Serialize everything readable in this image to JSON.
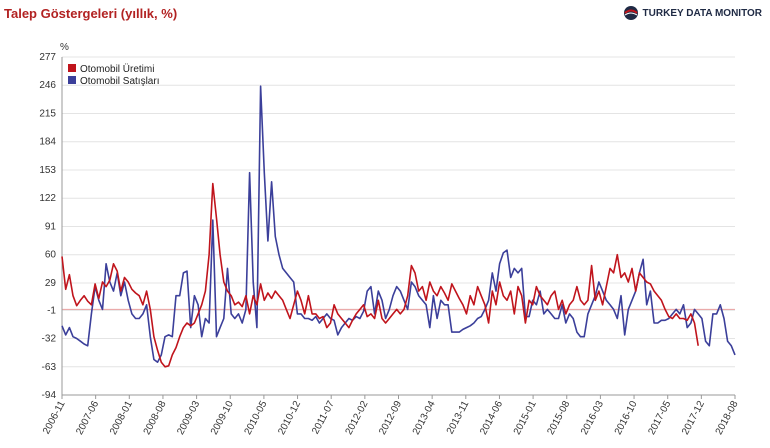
{
  "header": {
    "title": "Talep Göstergeleri (yıllık, %)",
    "brand": "TURKEY DATA MONITOR"
  },
  "colors": {
    "production": "#c0141c",
    "sales": "#3b3f9a",
    "zero_line": "#e8a0a0",
    "grid": "#e4e4e4"
  },
  "chart_data": {
    "type": "line",
    "ylabel": "%",
    "ylim": [
      -94,
      277
    ],
    "yticks": [
      277,
      246,
      215,
      184,
      153,
      122,
      91,
      60,
      29,
      -1,
      -32,
      -63,
      -94
    ],
    "xtick_labels": [
      "2006-11",
      "2007-06",
      "2008-01",
      "2008-08",
      "2009-03",
      "2009-10",
      "2010-05",
      "2010-12",
      "2011-07",
      "2012-02",
      "2012-09",
      "2013-04",
      "2013-11",
      "2014-06",
      "2015-01",
      "2015-08",
      "2016-03",
      "2016-10",
      "2017-05",
      "2017-12",
      "2018-08"
    ],
    "legend_position": "top-left",
    "series": [
      {
        "name": "Otomobil Üretimi",
        "key": "production",
        "values": [
          58,
          22,
          38,
          15,
          4,
          10,
          15,
          9,
          5,
          28,
          12,
          30,
          25,
          32,
          50,
          42,
          20,
          35,
          30,
          22,
          18,
          15,
          5,
          20,
          0,
          -30,
          -45,
          -58,
          -63,
          -62,
          -50,
          -42,
          -30,
          -20,
          -15,
          -18,
          -15,
          -5,
          5,
          20,
          60,
          138,
          100,
          60,
          30,
          20,
          15,
          5,
          8,
          3,
          15,
          -5,
          15,
          5,
          28,
          10,
          18,
          12,
          20,
          15,
          10,
          0,
          -10,
          5,
          20,
          10,
          -5,
          15,
          -5,
          -5,
          -10,
          -8,
          -20,
          -15,
          5,
          -5,
          -10,
          -15,
          -20,
          -12,
          -5,
          0,
          5,
          -8,
          -5,
          -10,
          10,
          -10,
          -15,
          -10,
          -5,
          0,
          -5,
          0,
          15,
          48,
          40,
          20,
          25,
          10,
          30,
          20,
          15,
          25,
          18,
          10,
          28,
          20,
          12,
          5,
          -5,
          15,
          5,
          25,
          15,
          5,
          -15,
          20,
          5,
          30,
          15,
          10,
          20,
          -5,
          25,
          15,
          -15,
          10,
          5,
          25,
          15,
          10,
          5,
          15,
          20,
          0,
          10,
          -5,
          5,
          10,
          25,
          10,
          5,
          10,
          48,
          10,
          20,
          5,
          25,
          45,
          40,
          60,
          35,
          40,
          30,
          45,
          20,
          40,
          35,
          30,
          28,
          20,
          15,
          10,
          0,
          -8,
          -10,
          -5,
          -10,
          -10,
          -12,
          -5,
          -15,
          -40
        ]
      },
      {
        "name": "Otomobil Satışları",
        "key": "sales",
        "values": [
          -18,
          -28,
          -20,
          -30,
          -32,
          -35,
          -38,
          -40,
          -5,
          25,
          10,
          0,
          50,
          30,
          20,
          40,
          15,
          30,
          10,
          -5,
          -10,
          -10,
          -5,
          5,
          -30,
          -55,
          -58,
          -50,
          -30,
          -28,
          -30,
          15,
          15,
          40,
          42,
          -20,
          15,
          5,
          -30,
          -10,
          -15,
          98,
          -30,
          -20,
          -10,
          45,
          -5,
          -10,
          -5,
          -15,
          0,
          150,
          30,
          -20,
          245,
          150,
          75,
          140,
          80,
          60,
          45,
          40,
          35,
          30,
          -5,
          -5,
          -10,
          -10,
          -12,
          -8,
          -15,
          -10,
          -5,
          -10,
          -12,
          -28,
          -20,
          -15,
          -10,
          -12,
          -8,
          -10,
          -2,
          20,
          25,
          -5,
          20,
          10,
          -10,
          0,
          15,
          25,
          20,
          10,
          0,
          30,
          25,
          15,
          10,
          5,
          -20,
          15,
          -10,
          10,
          5,
          5,
          -25,
          -25,
          -25,
          -22,
          -20,
          -18,
          -15,
          -10,
          -8,
          0,
          10,
          40,
          20,
          50,
          62,
          65,
          35,
          45,
          40,
          45,
          -8,
          -8,
          10,
          5,
          20,
          -5,
          0,
          -5,
          -10,
          -10,
          5,
          -15,
          -5,
          -10,
          -25,
          -30,
          -30,
          -5,
          5,
          15,
          30,
          20,
          10,
          5,
          0,
          -10,
          15,
          -28,
          0,
          10,
          20,
          40,
          55,
          5,
          20,
          -15,
          -15,
          -12,
          -12,
          -10,
          -5,
          0,
          -5,
          5,
          -20,
          -15,
          0,
          -5,
          -10,
          -35,
          -40,
          -5,
          -5,
          5,
          -10,
          -35,
          -40,
          -50
        ]
      }
    ]
  }
}
